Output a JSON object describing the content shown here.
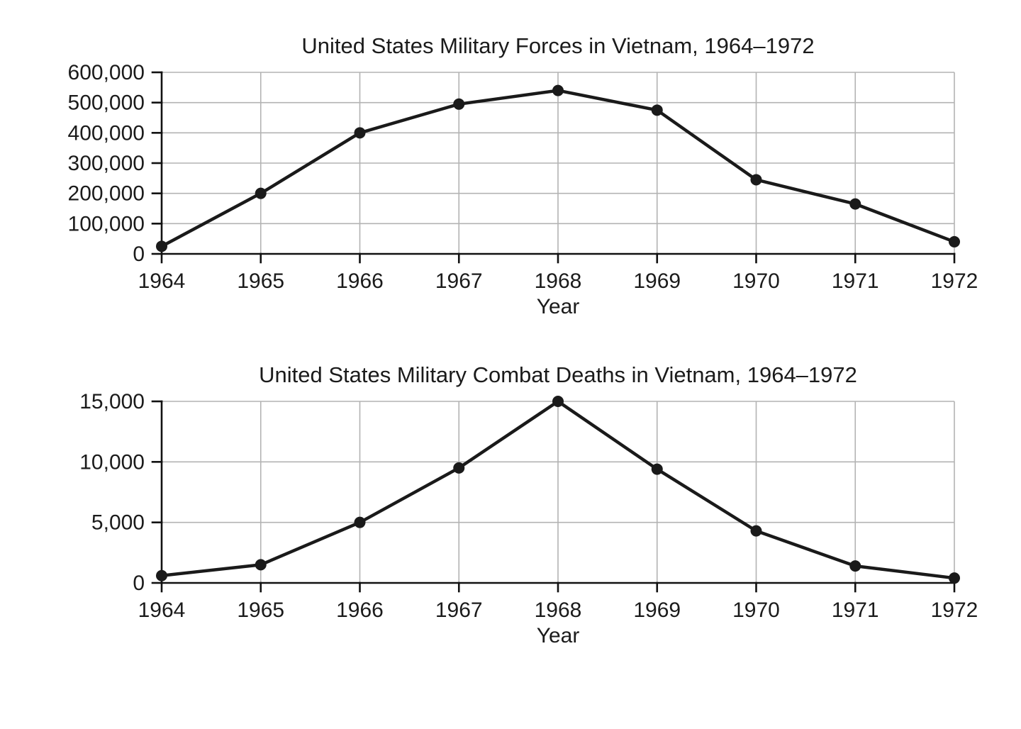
{
  "chart_data": [
    {
      "type": "line",
      "title": "United States Military Forces in Vietnam, 1964–1972",
      "xlabel": "Year",
      "categories": [
        "1964",
        "1965",
        "1966",
        "1967",
        "1968",
        "1969",
        "1970",
        "1971",
        "1972"
      ],
      "values": [
        25000,
        200000,
        400000,
        495000,
        540000,
        475000,
        245000,
        165000,
        40000
      ],
      "ylim": [
        0,
        600000
      ],
      "yticks": [
        0,
        100000,
        200000,
        300000,
        400000,
        500000,
        600000
      ],
      "ytick_labels": [
        "0",
        "100,000",
        "200,000",
        "300,000",
        "400,000",
        "500,000",
        "600,000"
      ],
      "grid": true,
      "legend": "none",
      "line_color": "#1a1a1a",
      "grid_color": "#b3b3b3",
      "axis_color": "#111111"
    },
    {
      "type": "line",
      "title": "United States Military Combat Deaths in Vietnam, 1964–1972",
      "xlabel": "Year",
      "categories": [
        "1964",
        "1965",
        "1966",
        "1967",
        "1968",
        "1969",
        "1970",
        "1971",
        "1972"
      ],
      "values": [
        600,
        1500,
        5000,
        9500,
        15000,
        9400,
        4300,
        1400,
        400
      ],
      "ylim": [
        0,
        15000
      ],
      "yticks": [
        0,
        5000,
        10000,
        15000
      ],
      "ytick_labels": [
        "0",
        "5,000",
        "10,000",
        "15,000"
      ],
      "grid": true,
      "legend": "none",
      "line_color": "#1a1a1a",
      "grid_color": "#b3b3b3",
      "axis_color": "#111111"
    }
  ]
}
